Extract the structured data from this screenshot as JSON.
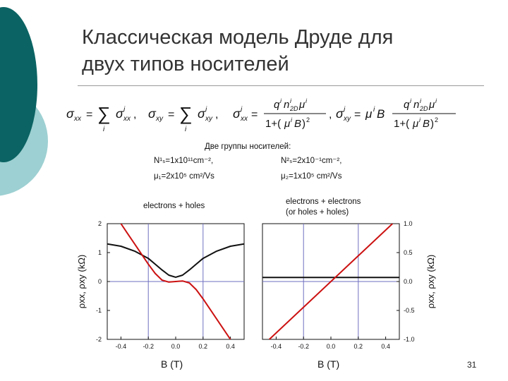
{
  "slide": {
    "title_line1": "Классическая модель Друде для",
    "title_line2": "двух типов носителей",
    "page_number": "31"
  },
  "formulas": {
    "sigma_xx": "σ",
    "sum": "∑"
  },
  "carriers": {
    "heading": "Две группы носителей:",
    "n1": "N¹ₛ=1x10¹¹cm⁻²,",
    "mu1": "μ₁=2x10⁵ cm²/Vs",
    "n2": "N²ₛ=2x10⁻¹cm⁻²,",
    "mu2": "μ₂=1x10⁵ cm²/Vs"
  },
  "left_panel": {
    "caption": "electrons + holes",
    "ylabel": "ρxx, ρxy (kΩ)",
    "xlabel": "B (T)"
  },
  "right_panel": {
    "caption_line1": "electrons + electrons",
    "caption_line2": "(or holes + holes)",
    "ylabel": "ρxx, ρxy (kΩ)",
    "xlabel": "B (T)"
  },
  "chart_data": [
    {
      "type": "line",
      "xlim": [
        -0.5,
        0.5
      ],
      "ylim": [
        -2,
        2
      ],
      "x_ticks": [
        "-0.4",
        "-0.2",
        "0.0",
        "0.2",
        "0.4"
      ],
      "y_ticks": [
        "2",
        "1",
        "0",
        "-1",
        "-2"
      ],
      "grid": true,
      "series": [
        {
          "color": "#111111",
          "x": [
            -0.5,
            -0.4,
            -0.3,
            -0.2,
            -0.15,
            -0.1,
            -0.05,
            0,
            0.05,
            0.1,
            0.15,
            0.2,
            0.3,
            0.4,
            0.5
          ],
          "y": [
            1.3,
            1.22,
            1.05,
            0.8,
            0.6,
            0.4,
            0.22,
            0.15,
            0.22,
            0.4,
            0.6,
            0.8,
            1.05,
            1.22,
            1.3
          ]
        },
        {
          "color": "#cc1111",
          "x": [
            -0.4,
            -0.35,
            -0.3,
            -0.25,
            -0.2,
            -0.15,
            -0.1,
            -0.05,
            0,
            0.05,
            0.1,
            0.15,
            0.2,
            0.25,
            0.3,
            0.35,
            0.4
          ],
          "y": [
            2.0,
            1.65,
            1.3,
            0.95,
            0.6,
            0.28,
            0.05,
            -0.02,
            0.0,
            0.02,
            -0.05,
            -0.28,
            -0.6,
            -0.95,
            -1.3,
            -1.65,
            -2.0
          ]
        }
      ]
    },
    {
      "type": "line",
      "xlim": [
        -0.5,
        0.5
      ],
      "ylim": [
        -1.0,
        1.0
      ],
      "x_ticks": [
        "-0.4",
        "-0.2",
        "0.0",
        "0.2",
        "0.4"
      ],
      "y_ticks": [
        "1.0",
        "0.5",
        "0.0",
        "-0.5",
        "-1.0"
      ],
      "grid": true,
      "series": [
        {
          "color": "#111111",
          "x": [
            -0.5,
            -0.25,
            0,
            0.25,
            0.5
          ],
          "y": [
            0.07,
            0.07,
            0.07,
            0.07,
            0.07
          ]
        },
        {
          "color": "#cc1111",
          "x": [
            -0.45,
            0.45
          ],
          "y": [
            -1.0,
            1.0
          ]
        }
      ]
    }
  ]
}
